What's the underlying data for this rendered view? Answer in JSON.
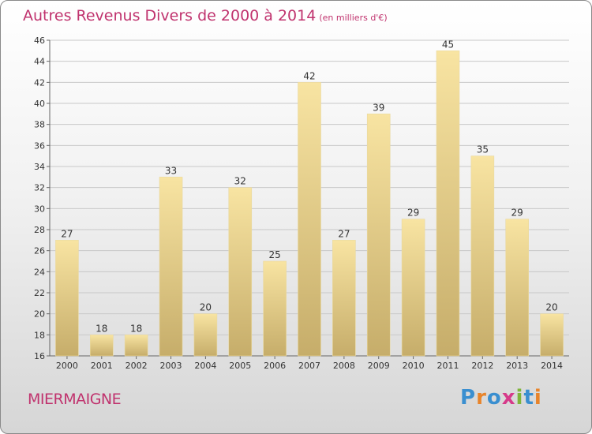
{
  "title": "Autres Revenus Divers de 2000 à 2014",
  "subtitle": "(en milliers d'€)",
  "place": "MIERMAIGNE",
  "brand": "Proxiti",
  "colors": {
    "title": "#c0336e",
    "bar_light": "#f8e4a2",
    "bar_dark": "#c6ad6a",
    "grid": "#c8c8c8",
    "brand_letters": [
      "#3a8fd0",
      "#e8842a",
      "#3a8fd0",
      "#d63a8a",
      "#7fb53a",
      "#3a8fd0",
      "#e8842a"
    ]
  },
  "chart_data": {
    "type": "bar",
    "title": "Autres Revenus Divers de 2000 à 2014",
    "xlabel": "",
    "ylabel": "",
    "categories": [
      "2000",
      "2001",
      "2002",
      "2003",
      "2004",
      "2005",
      "2006",
      "2007",
      "2008",
      "2009",
      "2010",
      "2011",
      "2012",
      "2013",
      "2014"
    ],
    "values": [
      27,
      18,
      18,
      33,
      20,
      32,
      25,
      42,
      27,
      39,
      29,
      45,
      35,
      29,
      20
    ],
    "ylim": [
      16,
      46
    ],
    "yticks": [
      16,
      18,
      20,
      22,
      24,
      26,
      28,
      30,
      32,
      34,
      36,
      38,
      40,
      42,
      44,
      46
    ],
    "grid": true,
    "data_labels": true
  }
}
